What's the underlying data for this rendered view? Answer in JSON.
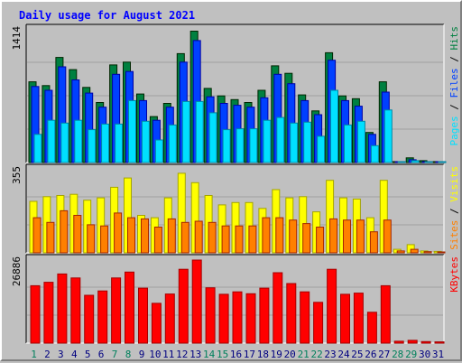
{
  "chart_data": {
    "type": "bar",
    "title": "Daily usage for August 2021",
    "categories": [
      "1",
      "2",
      "3",
      "4",
      "5",
      "6",
      "7",
      "8",
      "9",
      "10",
      "11",
      "12",
      "13",
      "14",
      "15",
      "16",
      "17",
      "18",
      "19",
      "20",
      "21",
      "22",
      "23",
      "24",
      "25",
      "26",
      "27",
      "28",
      "29",
      "30",
      "31"
    ],
    "weekend_days": [
      "1",
      "7",
      "8",
      "14",
      "15",
      "21",
      "22",
      "28",
      "29"
    ],
    "panels": [
      {
        "id": "hits",
        "ymax_label": "1414",
        "ymax": 1414,
        "series": [
          {
            "name": "Hits",
            "color": "#008040",
            "values": [
              860,
              820,
              1120,
              990,
              800,
              640,
              1040,
              1070,
              730,
              490,
              630,
              1160,
              1400,
              790,
              710,
              670,
              640,
              770,
              1030,
              950,
              720,
              550,
              1170,
              710,
              680,
              320,
              860,
              10,
              50,
              20,
              10
            ]
          },
          {
            "name": "Files",
            "color": "#0040ff",
            "values": [
              810,
              770,
              1020,
              880,
              740,
              590,
              940,
              970,
              660,
              450,
              590,
              1070,
              1300,
              700,
              630,
              610,
              590,
              690,
              940,
              840,
              660,
              510,
              1090,
              660,
              600,
              300,
              750,
              10,
              30,
              10,
              10
            ]
          },
          {
            "name": "Pages",
            "color": "#00e0ff",
            "values": [
              300,
              450,
              420,
              450,
              350,
              410,
              410,
              660,
              440,
              240,
              400,
              650,
              650,
              530,
              350,
              360,
              360,
              450,
              480,
              420,
              430,
              280,
              770,
              400,
              440,
              180,
              560,
              10,
              20,
              10,
              10
            ]
          }
        ],
        "legend": [
          {
            "label": "Hits",
            "color": "#008040"
          },
          {
            "label": "Files",
            "color": "#0040ff"
          },
          {
            "label": "Pages",
            "color": "#00e0ff"
          }
        ],
        "legend_sep_color": "#000000"
      },
      {
        "id": "visits",
        "ymax_label": "355",
        "ymax": 355,
        "series": [
          {
            "name": "Visits",
            "color": "#ffff00",
            "values": [
              220,
              240,
              245,
              250,
              225,
              235,
              280,
              320,
              160,
              150,
              235,
              340,
              300,
              245,
              205,
              215,
              215,
              190,
              270,
              235,
              240,
              175,
              310,
              235,
              230,
              150,
              310,
              15,
              35,
              8,
              6
            ]
          },
          {
            "name": "Sites",
            "color": "#ff8000",
            "values": [
              150,
              130,
              180,
              160,
              120,
              115,
              170,
              150,
              145,
              110,
              145,
              130,
              135,
              130,
              115,
              115,
              115,
              150,
              150,
              140,
              125,
              110,
              145,
              140,
              140,
              90,
              140,
              8,
              15,
              5,
              4
            ]
          }
        ],
        "legend": [
          {
            "label": "Visits",
            "color": "#ffff00"
          },
          {
            "label": "Sites",
            "color": "#ff8000"
          }
        ],
        "legend_sep_color": "#000000"
      },
      {
        "id": "kbytes",
        "ymax_label": "26886",
        "ymax": 26886,
        "series": [
          {
            "name": "KBytes",
            "color": "#ff0000",
            "values": [
              18600,
              19700,
              22400,
              21100,
              15500,
              16900,
              21100,
              23000,
              17800,
              12900,
              15900,
              23900,
              26886,
              17900,
              15800,
              16600,
              16000,
              17800,
              22800,
              19300,
              16600,
              13200,
              23900,
              15800,
              16200,
              10000,
              18600,
              600,
              900,
              500,
              400
            ]
          }
        ],
        "legend": [
          {
            "label": "KBytes",
            "color": "#ff0000"
          }
        ],
        "legend_sep_color": "#000000"
      }
    ],
    "colors": {
      "title": "#0000ff",
      "weekday_label": "#000080",
      "weekend_label": "#00805c",
      "plot_bg": "#c0c0c0",
      "grid": "#a0a0a0"
    },
    "grid": true,
    "legend_placement": "right (vertical)"
  }
}
